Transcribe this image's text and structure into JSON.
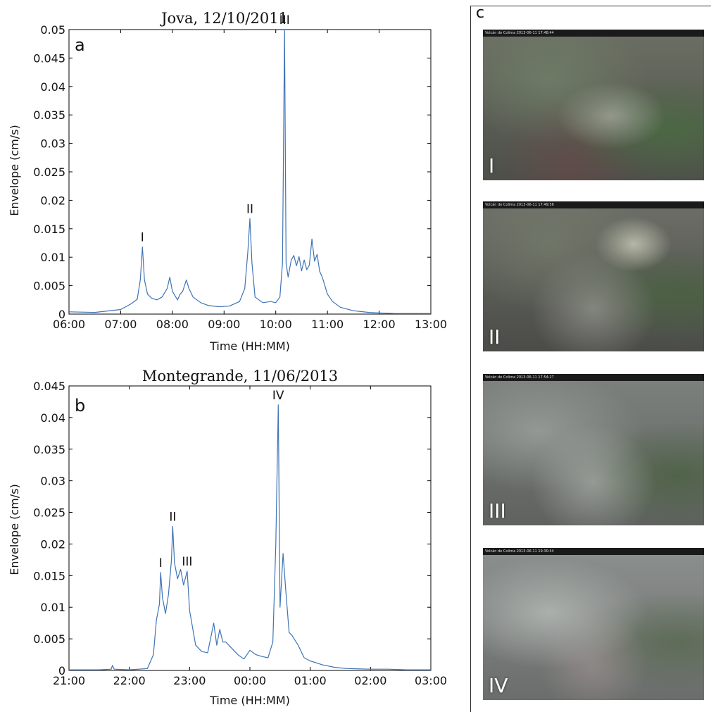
{
  "chart_data": [
    {
      "panel": "a",
      "type": "line",
      "title": "Jova, 12/10/2011",
      "xlabel": "Time (HH:MM)",
      "ylabel": "Envelope (cm/s)",
      "x_unit": "hours",
      "xlim": [
        6,
        13
      ],
      "ylim": [
        0,
        0.05
      ],
      "x_ticks": [
        "06:00",
        "07:00",
        "08:00",
        "09:00",
        "10:00",
        "11:00",
        "12:00",
        "13:00"
      ],
      "y_ticks": [
        "0",
        "0.005",
        "0.01",
        "0.015",
        "0.02",
        "0.025",
        "0.03",
        "0.035",
        "0.04",
        "0.045",
        "0.05"
      ],
      "line_color": "#3f74b5",
      "annotations": [
        {
          "label": "I",
          "x": 7.42,
          "y": 0.0118
        },
        {
          "label": "II",
          "x": 9.5,
          "y": 0.0168
        },
        {
          "label": "III",
          "x": 10.17,
          "y": 0.05
        }
      ],
      "series": [
        {
          "x": [
            6.0,
            6.5,
            7.0,
            7.2,
            7.32,
            7.38,
            7.42,
            7.46,
            7.52,
            7.6,
            7.7,
            7.8,
            7.9,
            7.95,
            8.0,
            8.1,
            8.15,
            8.2,
            8.27,
            8.32,
            8.4,
            8.55,
            8.7,
            8.9,
            9.1,
            9.3,
            9.4,
            9.46,
            9.5,
            9.54,
            9.6,
            9.75,
            9.9,
            10.0,
            10.08,
            10.13,
            10.17,
            10.2,
            10.24,
            10.3,
            10.35,
            10.4,
            10.45,
            10.5,
            10.55,
            10.6,
            10.65,
            10.7,
            10.75,
            10.8,
            10.85,
            10.9,
            10.95,
            11.0,
            11.1,
            11.25,
            11.5,
            11.8,
            12.0,
            12.3,
            12.5,
            13.0
          ],
          "y": [
            0.0004,
            0.0003,
            0.0008,
            0.0018,
            0.0026,
            0.006,
            0.0118,
            0.006,
            0.0035,
            0.0028,
            0.0025,
            0.003,
            0.0045,
            0.0065,
            0.004,
            0.0025,
            0.0035,
            0.004,
            0.006,
            0.0045,
            0.003,
            0.002,
            0.0015,
            0.0013,
            0.0014,
            0.0022,
            0.0045,
            0.011,
            0.0168,
            0.009,
            0.003,
            0.002,
            0.0022,
            0.002,
            0.003,
            0.009,
            0.05,
            0.009,
            0.0065,
            0.0095,
            0.0103,
            0.0085,
            0.0101,
            0.0076,
            0.0095,
            0.0078,
            0.0086,
            0.0132,
            0.0093,
            0.0105,
            0.0075,
            0.0065,
            0.005,
            0.0035,
            0.0022,
            0.0012,
            0.0006,
            0.0003,
            0.0002,
            0.0001,
            0.0001,
            0.0001
          ]
        }
      ]
    },
    {
      "panel": "b",
      "type": "line",
      "title": "Montegrande, 11/06/2013",
      "xlabel": "Time (HH:MM)",
      "ylabel": "Envelope (cm/s)",
      "x_unit": "hours",
      "xlim": [
        21,
        27
      ],
      "ylim": [
        0,
        0.045
      ],
      "x_ticks": [
        "21:00",
        "22:00",
        "23:00",
        "00:00",
        "01:00",
        "02:00",
        "03:00"
      ],
      "y_ticks": [
        "0",
        "0.005",
        "0.01",
        "0.015",
        "0.02",
        "0.025",
        "0.03",
        "0.035",
        "0.04",
        "0.045"
      ],
      "line_color": "#3f74b5",
      "annotations": [
        {
          "label": "I",
          "x": 22.52,
          "y": 0.0155
        },
        {
          "label": "II",
          "x": 22.72,
          "y": 0.0228
        },
        {
          "label": "III",
          "x": 22.96,
          "y": 0.0157
        },
        {
          "label": "IV",
          "x": 24.47,
          "y": 0.042
        }
      ],
      "series": [
        {
          "x": [
            21.0,
            21.5,
            21.7,
            21.72,
            21.75,
            22.0,
            22.3,
            22.4,
            22.45,
            22.5,
            22.52,
            22.55,
            22.6,
            22.65,
            22.7,
            22.72,
            22.75,
            22.8,
            22.85,
            22.9,
            22.96,
            23.0,
            23.1,
            23.2,
            23.3,
            23.4,
            23.45,
            23.5,
            23.55,
            23.6,
            23.7,
            23.8,
            23.9,
            24.0,
            24.1,
            24.2,
            24.3,
            24.38,
            24.43,
            24.47,
            24.5,
            24.55,
            24.6,
            24.65,
            24.7,
            24.8,
            24.9,
            25.0,
            25.2,
            25.4,
            25.6,
            26.0,
            26.3,
            26.6,
            27.0
          ],
          "y": [
            0.0001,
            0.0001,
            0.0002,
            0.0008,
            0.0002,
            0.0001,
            0.0003,
            0.0025,
            0.008,
            0.0105,
            0.0155,
            0.0115,
            0.009,
            0.012,
            0.0175,
            0.0228,
            0.017,
            0.0145,
            0.016,
            0.0135,
            0.0157,
            0.0095,
            0.004,
            0.003,
            0.0028,
            0.0075,
            0.004,
            0.0065,
            0.0045,
            0.0045,
            0.0035,
            0.0025,
            0.0018,
            0.0032,
            0.0025,
            0.0022,
            0.002,
            0.0045,
            0.02,
            0.042,
            0.01,
            0.0185,
            0.012,
            0.006,
            0.0055,
            0.004,
            0.002,
            0.0015,
            0.0009,
            0.0005,
            0.0003,
            0.0002,
            0.0002,
            0.0001,
            0.0001
          ]
        }
      ]
    }
  ],
  "panels": {
    "a_letter": "a",
    "b_letter": "b",
    "c_letter": "c"
  },
  "webcam": [
    {
      "caption": "Volcán de Colima 2013-06-11 17:48:44",
      "label": "I",
      "tone": "#5a5c55"
    },
    {
      "caption": "Volcán de Colima 2013-06-11 17:49:56",
      "label": "II",
      "tone": "#5e605b"
    },
    {
      "caption": "Volcán de Colima 2013-06-11 17:54:27",
      "label": "III",
      "tone": "#6d726f"
    },
    {
      "caption": "Volcán de Colima 2013-06-11 19:30:44",
      "label": "IV",
      "tone": "#7a7e7c"
    }
  ]
}
